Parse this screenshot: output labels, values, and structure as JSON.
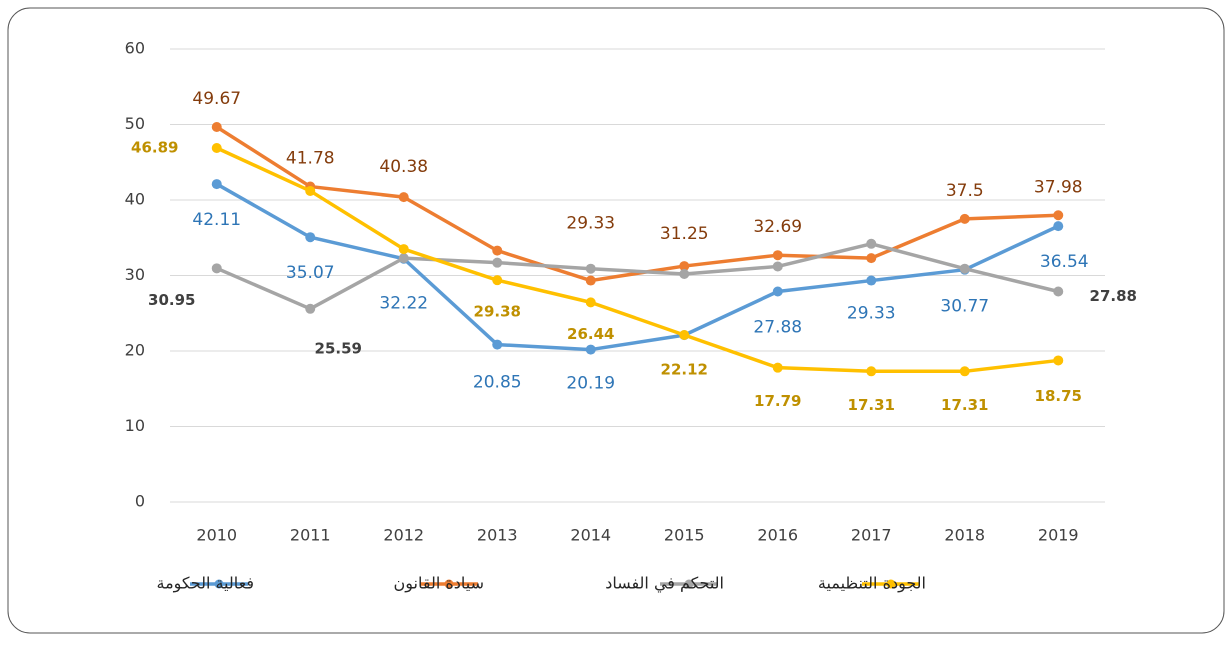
{
  "chart_data": {
    "type": "line",
    "categories": [
      "2010",
      "2011",
      "2012",
      "2013",
      "2014",
      "2015",
      "2016",
      "2017",
      "2018",
      "2019"
    ],
    "series": [
      {
        "name": "فعالية الحكومة",
        "color": "#5b9bd5",
        "label_color": "#2e75b6",
        "label_bold": false,
        "values": [
          42.11,
          35.07,
          32.22,
          20.85,
          20.19,
          22.1,
          27.88,
          29.33,
          30.77,
          36.54
        ],
        "value_labels": [
          "42.11",
          "35.07",
          "32.22",
          "20.85",
          "20.19",
          null,
          "27.88",
          "29.33",
          "30.77",
          "36.54"
        ]
      },
      {
        "name": "سيادة القانون",
        "color": "#ed7d31",
        "label_color": "#843c0c",
        "label_bold": false,
        "values": [
          49.67,
          41.78,
          40.38,
          33.3,
          29.33,
          31.25,
          32.69,
          32.3,
          37.5,
          37.98
        ],
        "value_labels": [
          "49.67",
          "41.78",
          "40.38",
          null,
          "29.33",
          "31.25",
          "32.69",
          null,
          "37.5",
          "37.98"
        ]
      },
      {
        "name": "التحكم في الفساد",
        "color": "#a5a5a5",
        "label_color": "#404040",
        "label_bold": true,
        "values": [
          30.95,
          25.59,
          32.3,
          31.7,
          30.9,
          30.2,
          31.2,
          34.2,
          30.9,
          27.88
        ],
        "value_labels": [
          "30.95",
          "25.59",
          null,
          null,
          null,
          null,
          null,
          null,
          null,
          "27.88"
        ]
      },
      {
        "name": "الجودة التنظيمية",
        "color": "#ffc000",
        "label_color": "#bf9000",
        "label_bold": true,
        "values": [
          46.89,
          41.2,
          33.5,
          29.38,
          26.44,
          22.12,
          17.79,
          17.31,
          17.31,
          18.75
        ],
        "value_labels": [
          "46.89",
          null,
          null,
          "29.38",
          "26.44",
          "22.12",
          "17.79",
          "17.31",
          "17.31",
          "18.75"
        ]
      }
    ],
    "ylim": [
      0,
      60
    ],
    "yticks": [
      0,
      10,
      20,
      30,
      40,
      50,
      60
    ],
    "grid": true
  }
}
